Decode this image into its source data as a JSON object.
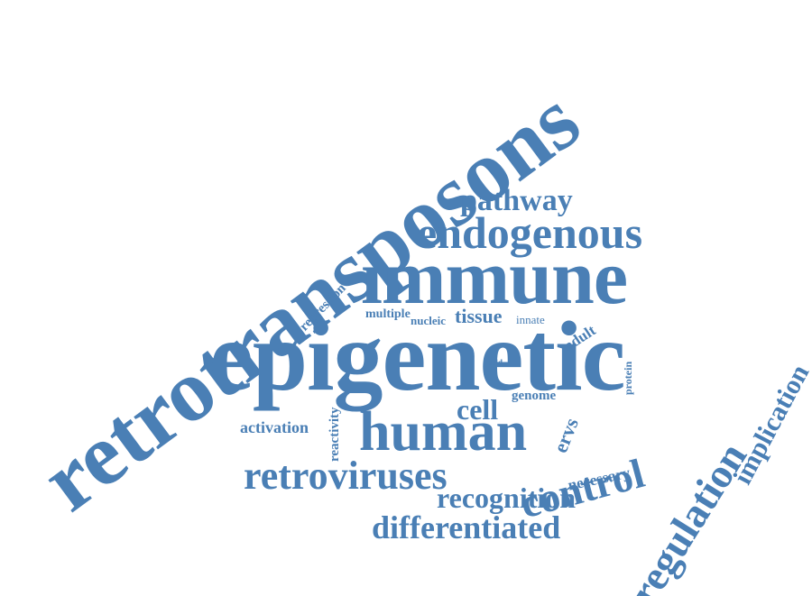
{
  "color": "#4a7fb5",
  "words": [
    "retrotransposons",
    "epigenetic",
    "immune",
    "endogenous",
    "pathway",
    "human",
    "control",
    "regulation",
    "implication",
    "retroviruses",
    "recognition",
    "differentiated",
    "cell",
    "ervs",
    "activation",
    "reactivity",
    "repression",
    "multiple",
    "nucleic",
    "tissue",
    "innate",
    "adult",
    "acid",
    "genome",
    "protein",
    "necessary"
  ]
}
